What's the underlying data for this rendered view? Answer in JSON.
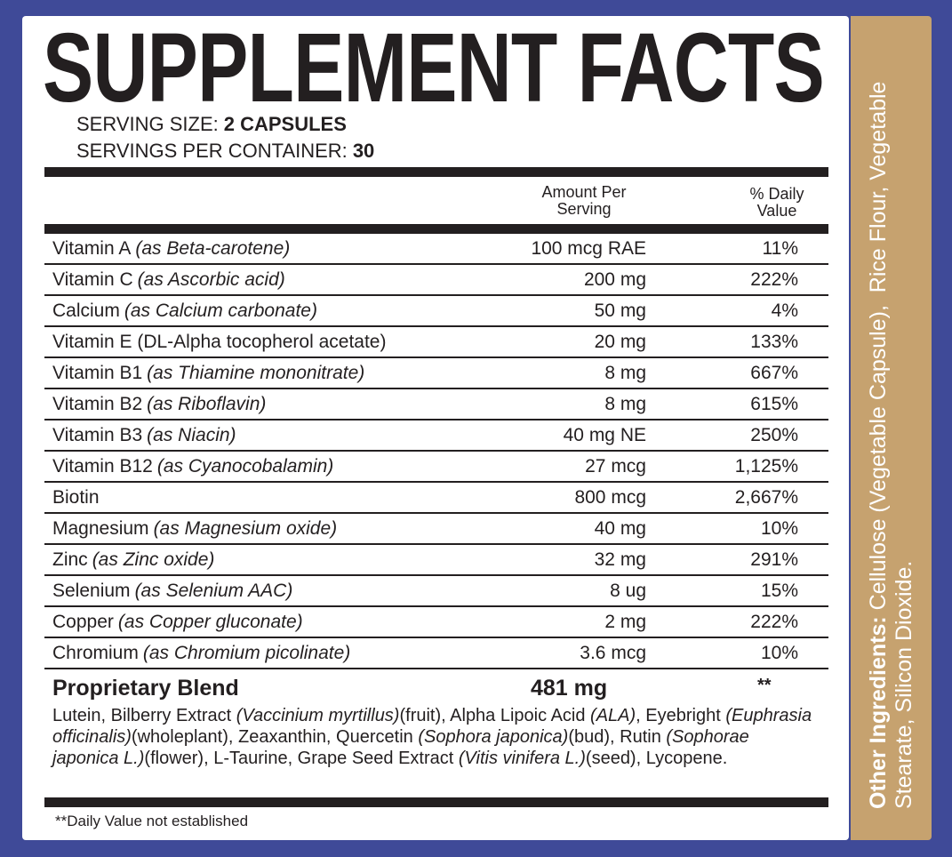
{
  "title": "SUPPLEMENT FACTS",
  "serving_size": {
    "label": "SERVING SIZE:",
    "value": "2 CAPSULES"
  },
  "servings_per_container": {
    "label": "SERVINGS PER CONTAINER:",
    "value": "30"
  },
  "table": {
    "header": {
      "amount": "Amount Per Serving",
      "dv": "% Daily Value"
    },
    "rows": [
      {
        "name": "Vitamin A",
        "detail": "(as Beta-carotene)",
        "amount": "100 mcg RAE",
        "dv": "11%"
      },
      {
        "name": "Vitamin C",
        "detail": "(as Ascorbic acid)",
        "amount": "200 mg",
        "dv": "222%"
      },
      {
        "name": "Calcium",
        "detail": "(as Calcium carbonate)",
        "amount": "50 mg",
        "dv": "4%"
      },
      {
        "name": "Vitamin E (DL-Alpha tocopherol acetate)",
        "amount": "20 mg",
        "dv": "133%"
      },
      {
        "name": "Vitamin B1",
        "detail": "(as Thiamine mononitrate)",
        "amount": "8 mg",
        "dv": "667%"
      },
      {
        "name": "Vitamin B2",
        "detail": "(as Riboflavin)",
        "amount": "8 mg",
        "dv": "615%"
      },
      {
        "name": "Vitamin B3",
        "detail": "(as Niacin)",
        "amount": "40 mg NE",
        "dv": "250%"
      },
      {
        "name": "Vitamin B12",
        "detail": "(as Cyanocobalamin)",
        "amount": "27 mcg",
        "dv": "1,125%"
      },
      {
        "name": "Biotin",
        "amount": "800 mcg",
        "dv": "2,667%"
      },
      {
        "name": "Magnesium",
        "detail": "(as Magnesium oxide)",
        "amount": "40 mg",
        "dv": "10%"
      },
      {
        "name": "Zinc",
        "detail": "(as Zinc oxide)",
        "amount": "32 mg",
        "dv": "291%"
      },
      {
        "name": "Selenium",
        "detail": "(as Selenium AAC)",
        "amount": "8 ug",
        "dv": "15%"
      },
      {
        "name": "Copper",
        "detail": "(as Copper gluconate)",
        "amount": "2 mg",
        "dv": "222%"
      },
      {
        "name": "Chromium",
        "detail": "(as Chromium picolinate)",
        "amount": "3.6 mcg",
        "dv": "10%"
      }
    ],
    "blend": {
      "name": "Proprietary Blend",
      "amount": "481 mg",
      "dv": "**",
      "ingredients": [
        {
          "text": "Lutein, Bilberry Extract ",
          "italic": false
        },
        {
          "text": "(Vaccinium myrtillus)",
          "italic": true
        },
        {
          "text": "(fruit), Alpha Lipoic Acid ",
          "italic": false
        },
        {
          "text": "(ALA)",
          "italic": true
        },
        {
          "text": ", Eyebright ",
          "italic": false
        },
        {
          "text": "(Euphrasia officinalis)",
          "italic": true
        },
        {
          "text": "(wholeplant), Zeaxanthin, Quercetin ",
          "italic": false
        },
        {
          "text": "(Sophora japonica)",
          "italic": true
        },
        {
          "text": "(bud), Rutin ",
          "italic": false
        },
        {
          "text": "(Sophorae japonica L.)",
          "italic": true
        },
        {
          "text": "(flower), L-Taurine, Grape Seed Extract ",
          "italic": false
        },
        {
          "text": "(Vitis vinifera L.)",
          "italic": true
        },
        {
          "text": "(seed), Lycopene.",
          "italic": false
        }
      ]
    }
  },
  "footnote": "**Daily Value not established",
  "other_ingredients": {
    "label": "Other Ingredients:",
    "text": "Cellulose (Vegetable Capsule),  Rice Flour, Vegetable Stearate, Silicon Dioxide."
  }
}
